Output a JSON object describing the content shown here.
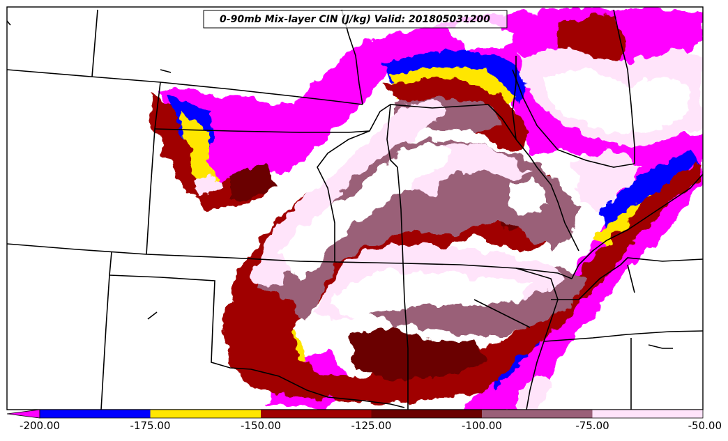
{
  "title": "0-90mb Mix-layer CIN (J/kg) Valid: 201805031200",
  "colors": {
    "below_min": "#ff00ff",
    "band1": "#0000ff",
    "band2": "#ffe600",
    "band3": "#a00000",
    "band4": "#6a0000",
    "band5": "#9a6078",
    "band6": "#ffe4fa",
    "border": "#000000"
  },
  "colorbar": {
    "extend": "min",
    "ticks": [
      "-200.00",
      "-175.00",
      "-150.00",
      "-125.00",
      "-100.00",
      "-75.00",
      "-50.00"
    ]
  }
}
